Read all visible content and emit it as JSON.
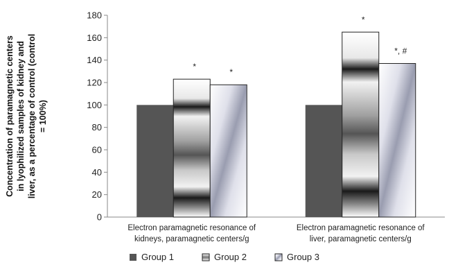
{
  "chart_data": {
    "type": "bar",
    "categories": [
      [
        "Electron paramagnetic resonance of",
        "kidneys, paramagnetic centers/g"
      ],
      [
        "Electron paramagnetic resonance of",
        "liver, paramagnetic centers/g"
      ]
    ],
    "series": [
      {
        "name": "Group 1",
        "values": [
          100,
          100
        ],
        "annotations": [
          "",
          ""
        ]
      },
      {
        "name": "Group 2",
        "values": [
          123,
          165
        ],
        "annotations": [
          "*",
          "*"
        ]
      },
      {
        "name": "Group 3",
        "values": [
          118,
          137
        ],
        "annotations": [
          "*",
          "*, #"
        ]
      }
    ],
    "ylabel": [
      "Concentration of paramagnetic centers",
      "in lyophilized samples of kidney and",
      "liver, as a percentage of control (control",
      "= 100%)"
    ],
    "ylim": [
      0,
      180
    ],
    "yticks": [
      0,
      20,
      40,
      60,
      80,
      100,
      120,
      140,
      160,
      180
    ],
    "grid": false,
    "legend_position": "bottom",
    "colors": {
      "group1": "#555555",
      "group2_dark": "#1a1a1a",
      "group2_light": "#f2f2f2",
      "group3_dark": "#9a9db0",
      "group3_light": "#ffffff",
      "axis": "#888888",
      "bar_outline": "#222222"
    }
  }
}
